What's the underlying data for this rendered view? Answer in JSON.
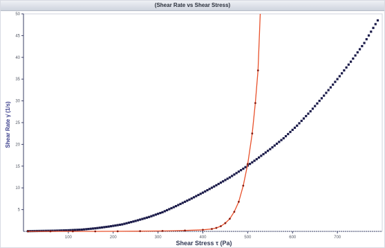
{
  "window": {
    "title": "(Shear Rate vs Shear Stress)"
  },
  "colors": {
    "series1": "#1c1c4a",
    "series2": "#e8502a",
    "series2_marker": "#8a1c10",
    "axis": "#3a3f66",
    "grid": "#cfd3dd"
  },
  "chart_data": {
    "type": "scatter",
    "title": "(Shear Rate vs Shear Stress)",
    "xlabel": "Shear Stress τ (Pa)",
    "ylabel": "Shear Rate γ̇ (1/s)",
    "xlim": [
      0,
      800
    ],
    "ylim": [
      0,
      50
    ],
    "xticks": [
      "100",
      "200",
      "300",
      "400",
      "500",
      "600",
      "700"
    ],
    "yticks": [
      "5",
      "10",
      "15",
      "20",
      "25",
      "30",
      "35",
      "40",
      "45",
      "50"
    ],
    "grid": false,
    "legend": "none",
    "series": [
      {
        "style": "markers",
        "x": [
          10,
          40,
          70,
          100,
          130,
          160,
          190,
          220,
          250,
          280,
          310,
          340,
          370,
          400,
          430,
          460,
          490,
          520,
          550,
          580,
          610,
          640,
          670,
          700,
          730,
          760,
          790
        ],
        "y": [
          0.05,
          0.1,
          0.15,
          0.25,
          0.4,
          0.7,
          1.1,
          1.6,
          2.4,
          3.3,
          4.4,
          5.8,
          7.3,
          8.9,
          10.6,
          12.4,
          14.4,
          16.6,
          18.9,
          21.4,
          24.3,
          27.6,
          31.2,
          35.0,
          39.0,
          43.3,
          48.5
        ]
      },
      {
        "style": "line+markers",
        "x": [
          10,
          60,
          110,
          160,
          210,
          260,
          310,
          360,
          400,
          420,
          430,
          440,
          450,
          460,
          470,
          480,
          490,
          500,
          510,
          517,
          523,
          528
        ],
        "y": [
          0,
          0,
          0,
          0,
          0.02,
          0.05,
          0.1,
          0.2,
          0.35,
          0.55,
          0.8,
          1.2,
          1.9,
          2.9,
          4.5,
          6.8,
          10.5,
          15.5,
          22.5,
          29.5,
          37.0,
          50.0
        ]
      }
    ]
  }
}
